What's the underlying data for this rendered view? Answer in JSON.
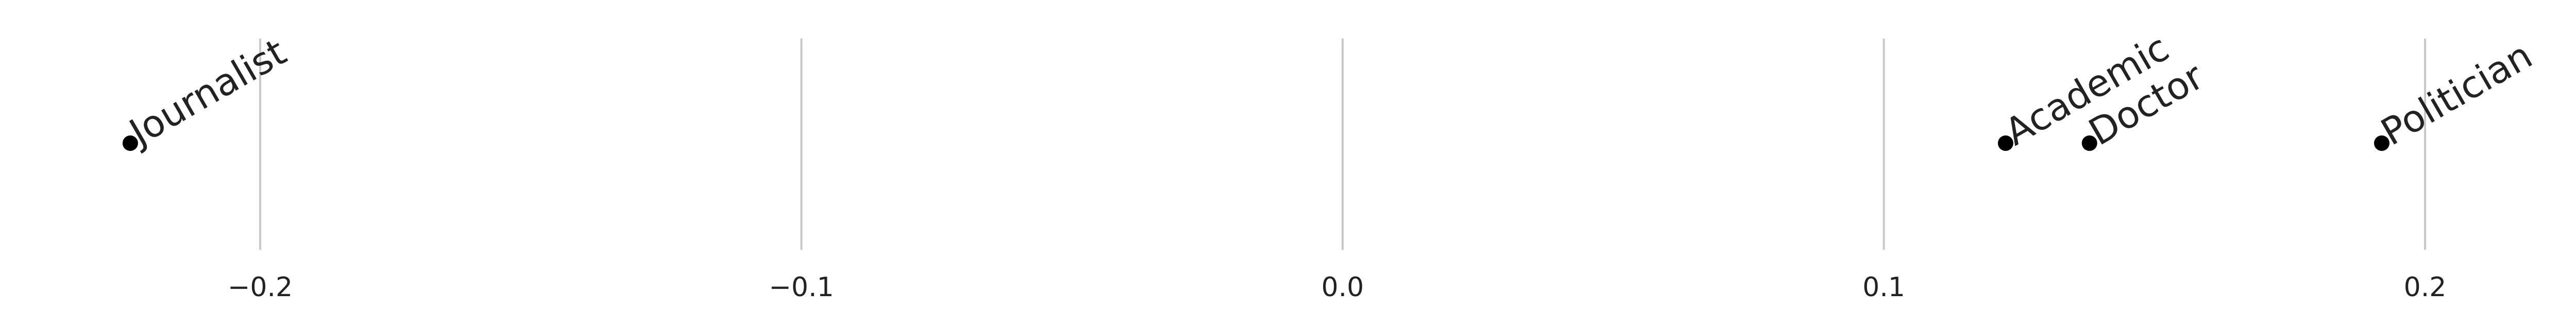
{
  "chart_data": {
    "type": "scatter",
    "title": "",
    "xlabel": "",
    "ylabel": "",
    "xlim": [
      -0.248,
      0.225
    ],
    "xticks": [
      -0.2,
      -0.1,
      0.0,
      0.1,
      0.2
    ],
    "xtick_labels": [
      "−0.2",
      "−0.1",
      "0.0",
      "0.1",
      "0.2"
    ],
    "grid": "vertical",
    "points": [
      {
        "label": "Journalist",
        "x": -0.224,
        "y": 0
      },
      {
        "label": "Academic",
        "x": 0.1225,
        "y": 0
      },
      {
        "label": "Doctor",
        "x": 0.138,
        "y": 0
      },
      {
        "label": "Politician",
        "x": 0.192,
        "y": 0
      }
    ],
    "colors": {
      "point": "#000000",
      "grid": "#c8c8c8",
      "text": "#222222"
    }
  }
}
